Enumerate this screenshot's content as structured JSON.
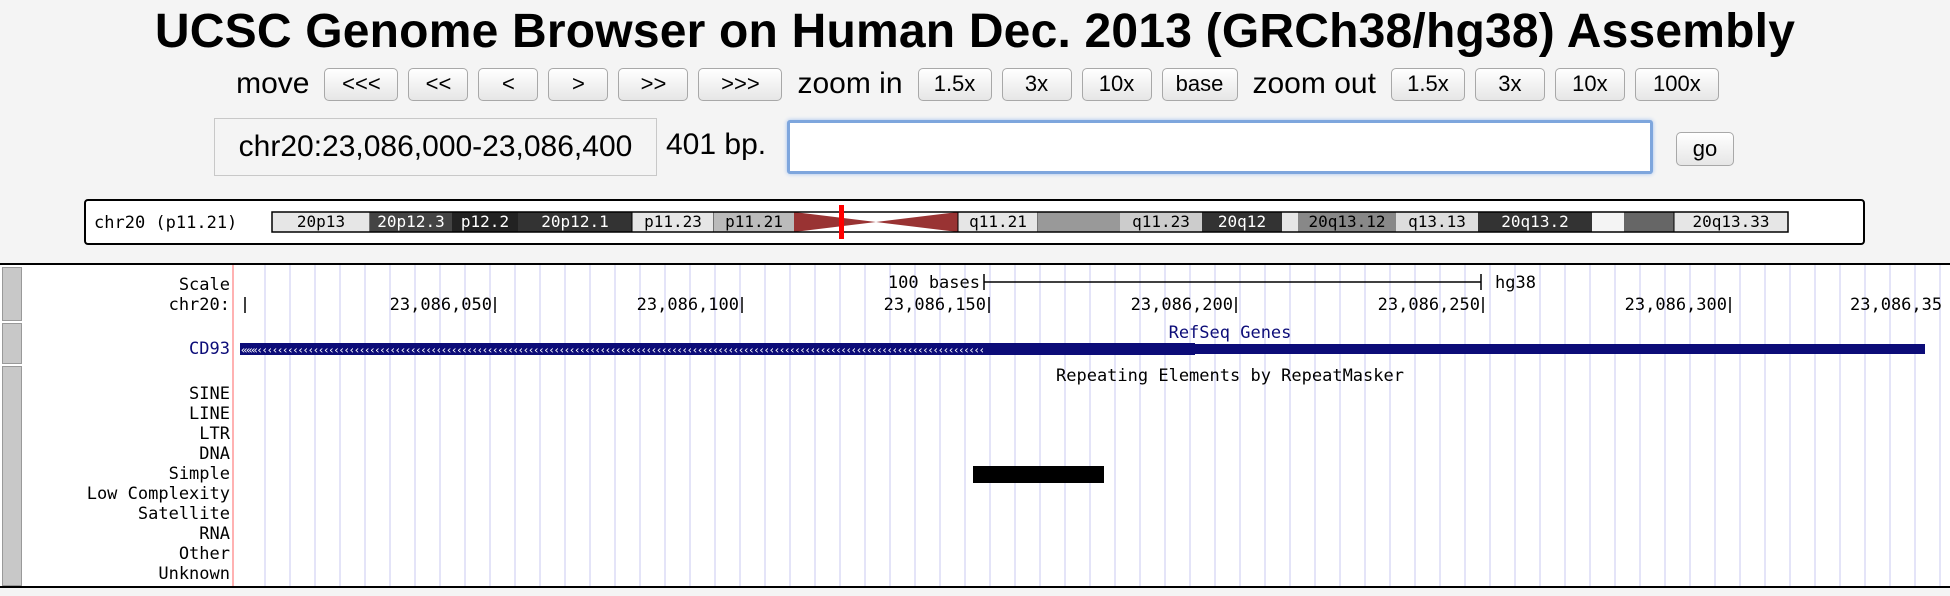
{
  "title": "UCSC Genome Browser on Human Dec. 2013 (GRCh38/hg38) Assembly",
  "nav": {
    "move_label": "move",
    "move_buttons": [
      "<<<",
      "<<",
      "<",
      ">",
      ">>",
      ">>>"
    ],
    "zoom_in_label": "zoom in",
    "zoom_in_buttons": [
      "1.5x",
      "3x",
      "10x",
      "base"
    ],
    "zoom_out_label": "zoom out",
    "zoom_out_buttons": [
      "1.5x",
      "3x",
      "10x",
      "100x"
    ]
  },
  "position": {
    "value": "chr20:23,086,000-23,086,400",
    "size": "401 bp.",
    "search_value": "",
    "go_label": "go"
  },
  "ideogram": {
    "label": "chr20 (p11.21)",
    "bands": [
      "20p13",
      "20p12.3",
      "p12.2",
      "20p12.1",
      "p11.23",
      "p11.21",
      "q11.21",
      "q11.23",
      "20q12",
      "20q13.12",
      "q13.13",
      "20q13.2",
      "20q13.33"
    ],
    "highlight_color": "#ff0000",
    "centromere_color": "#993333"
  },
  "tracks": {
    "scale_label": "Scale",
    "scale_text": "100 bases",
    "assembly": "hg38",
    "chrom_label": "chr20:",
    "ticks": [
      "23,086,050",
      "23,086,100",
      "23,086,150",
      "23,086,200",
      "23,086,250",
      "23,086,300",
      "23,086,35"
    ],
    "gene_track_title": "RefSeq Genes",
    "gene_name": "CD93",
    "gene_color": "#0c0c78",
    "repeat_track_title": "Repeating Elements by RepeatMasker",
    "repeat_classes": [
      "SINE",
      "LINE",
      "LTR",
      "DNA",
      "Simple",
      "Low Complexity",
      "Satellite",
      "RNA",
      "Other",
      "Unknown"
    ]
  }
}
